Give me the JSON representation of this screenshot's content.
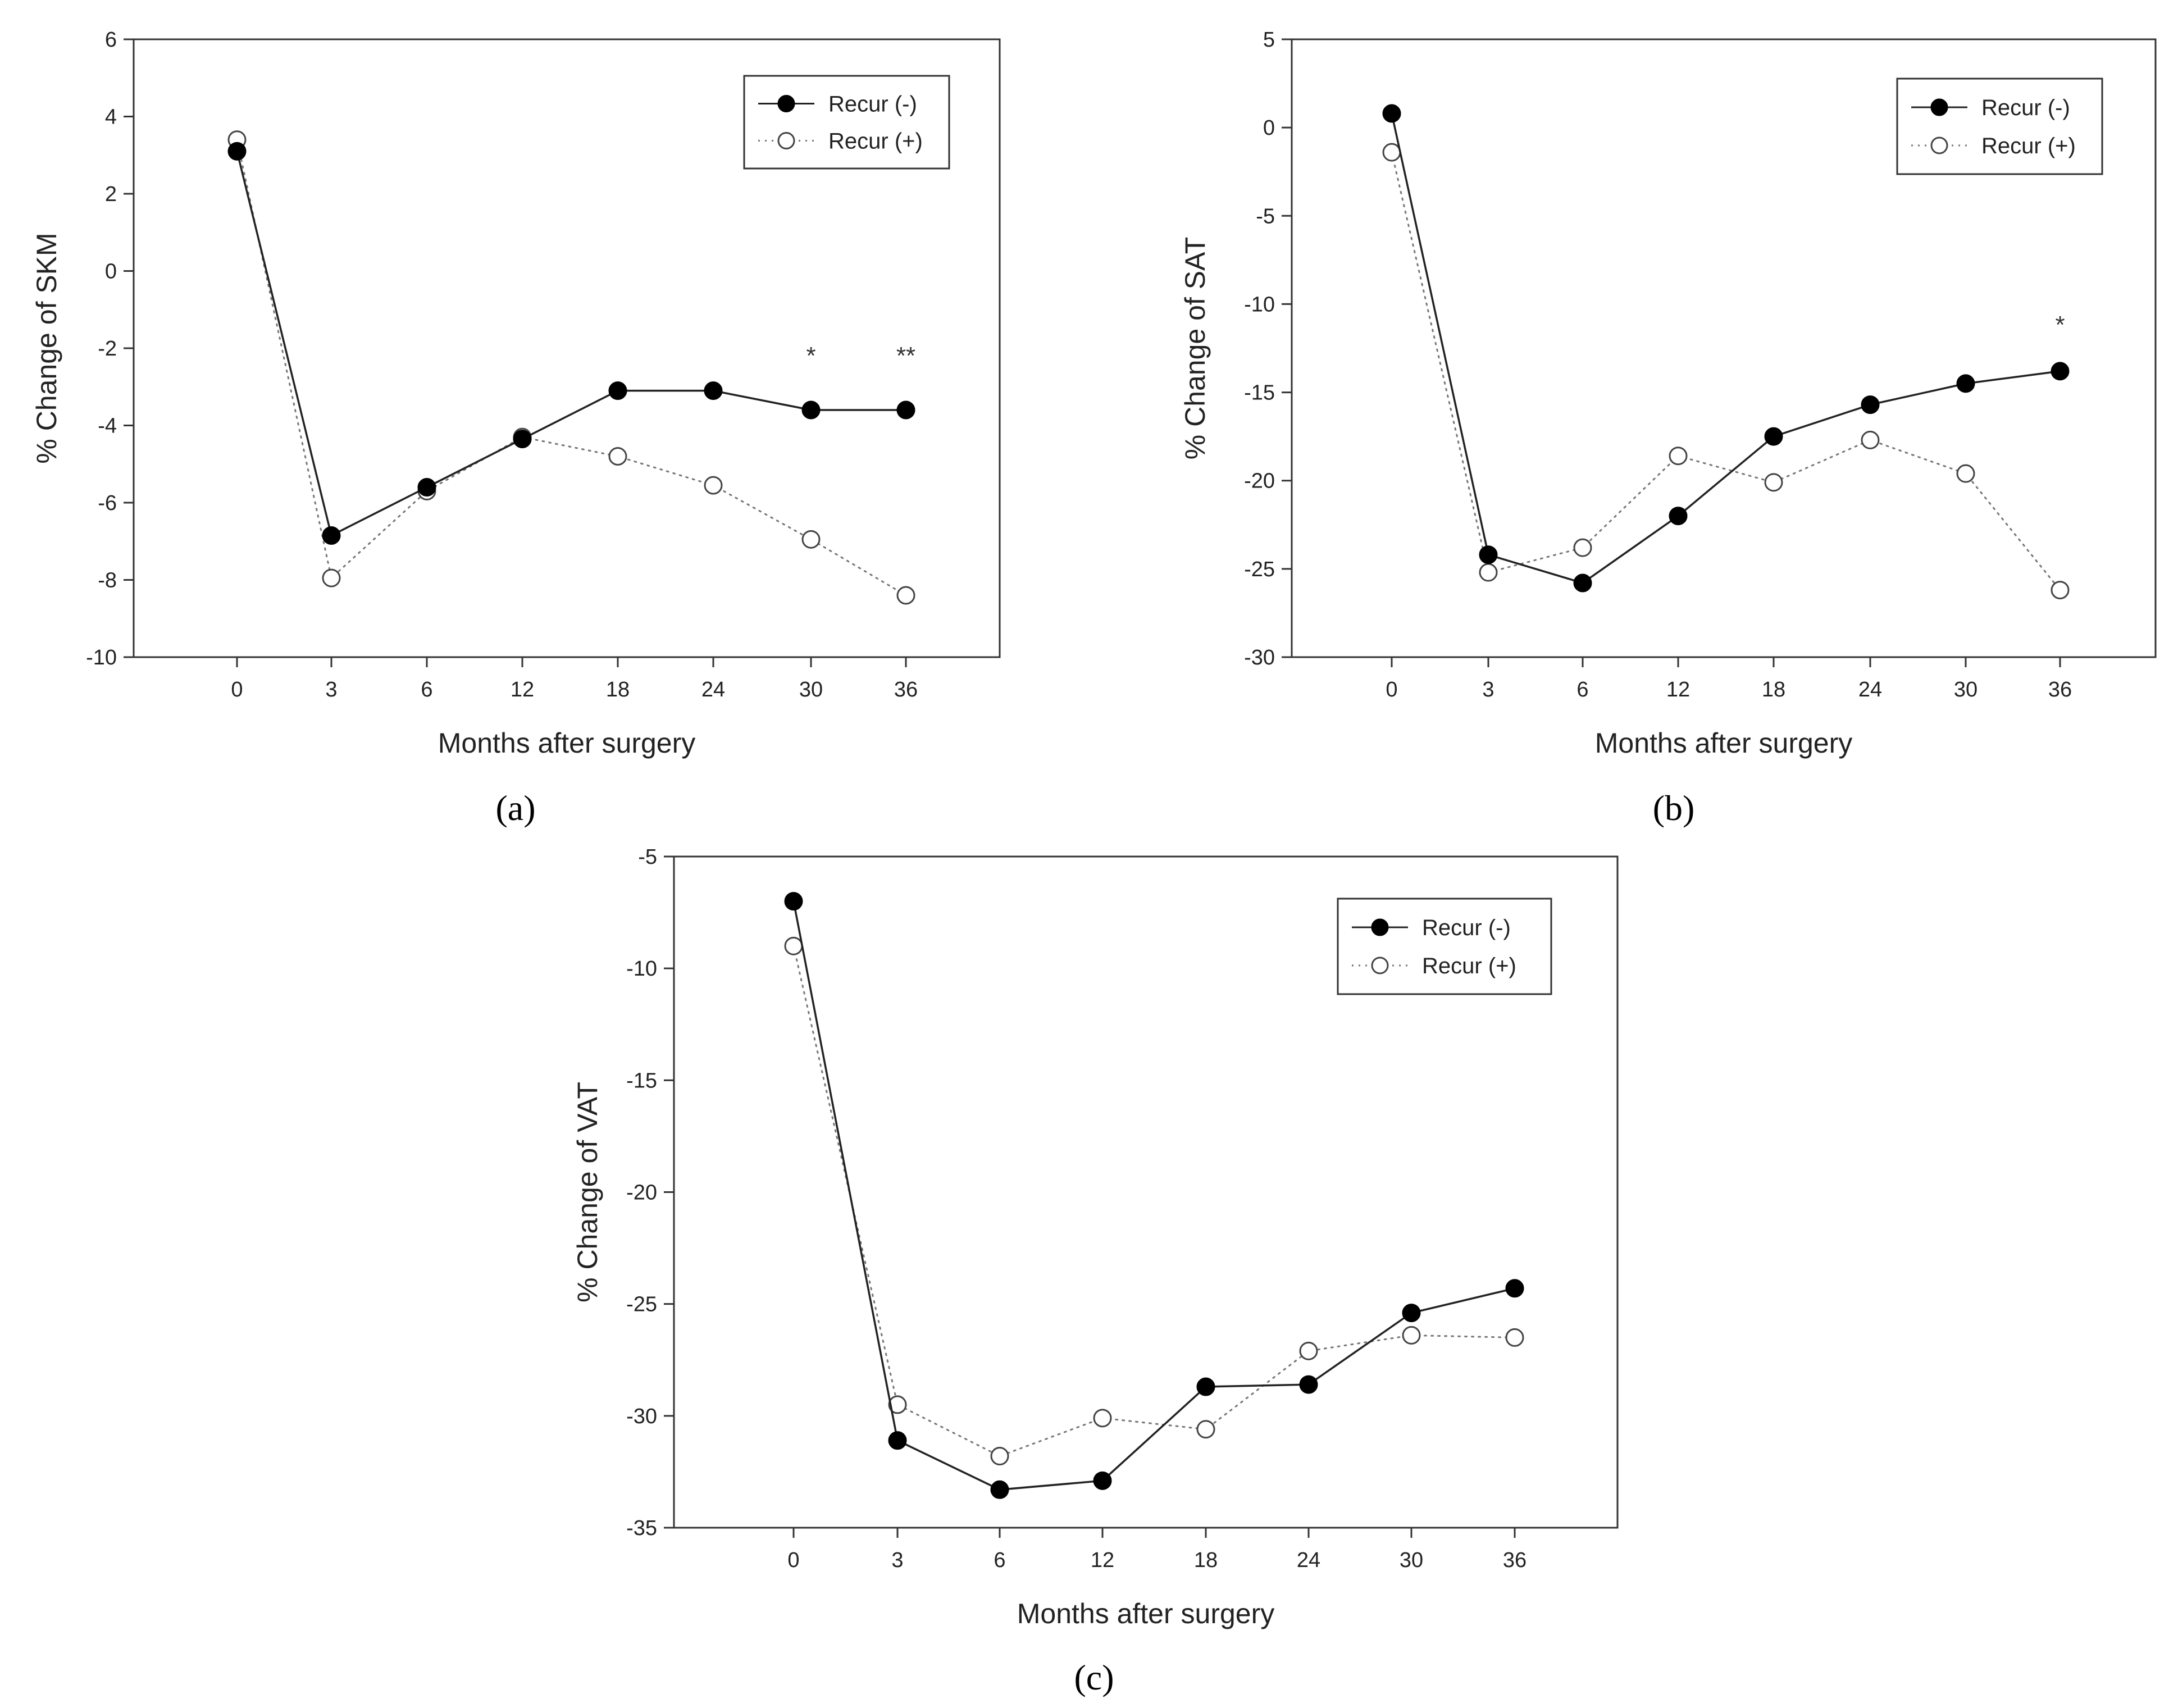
{
  "figure": {
    "panels": [
      "(a)",
      "(b)",
      "(c)"
    ],
    "legend": [
      "Recur (-)",
      "Recur (+)"
    ]
  },
  "chart_data": [
    {
      "type": "line",
      "panel": "(a)",
      "title": "",
      "xlabel": "Months after surgery",
      "ylabel": "% Change of SKM",
      "categories": [
        "0",
        "3",
        "6",
        "12",
        "18",
        "24",
        "30",
        "36"
      ],
      "yticks": [
        "6",
        "4",
        "2",
        "0",
        "-2",
        "-4",
        "-6",
        "-8",
        "-10"
      ],
      "ylim": [
        -10,
        6
      ],
      "legend_position": "top-right",
      "series": [
        {
          "name": "Recur (-)",
          "style": "solid",
          "marker": "filled",
          "values": [
            3.1,
            -6.85,
            -5.6,
            -4.35,
            -3.1,
            -3.1,
            -3.6,
            -3.6
          ]
        },
        {
          "name": "Recur (+)",
          "style": "dotted",
          "marker": "open",
          "values": [
            3.4,
            -7.95,
            -5.7,
            -4.3,
            -4.8,
            -5.55,
            -6.95,
            -8.4
          ]
        }
      ],
      "annotations": [
        {
          "category": "30",
          "text": "*",
          "value": -2.2
        },
        {
          "category": "36",
          "text": "**",
          "value": -2.2
        }
      ]
    },
    {
      "type": "line",
      "panel": "(b)",
      "title": "",
      "xlabel": "Months after surgery",
      "ylabel": "% Change of SAT",
      "categories": [
        "0",
        "3",
        "6",
        "12",
        "18",
        "24",
        "30",
        "36"
      ],
      "yticks": [
        "5",
        "0",
        "-5",
        "-10",
        "-15",
        "-20",
        "-25",
        "-30"
      ],
      "ylim": [
        -30,
        5
      ],
      "legend_position": "top-right",
      "series": [
        {
          "name": "Recur (-)",
          "style": "solid",
          "marker": "filled",
          "values": [
            0.8,
            -24.2,
            -25.8,
            -22.0,
            -17.5,
            -15.7,
            -14.5,
            -13.8
          ]
        },
        {
          "name": "Recur (+)",
          "style": "dotted",
          "marker": "open",
          "values": [
            -1.4,
            -25.2,
            -23.8,
            -18.6,
            -20.1,
            -17.7,
            -19.6,
            -26.2
          ]
        }
      ],
      "annotations": [
        {
          "category": "36",
          "text": "*",
          "value": -11.2
        }
      ]
    },
    {
      "type": "line",
      "panel": "(c)",
      "title": "",
      "xlabel": "Months after surgery",
      "ylabel": "% Change of VAT",
      "categories": [
        "0",
        "3",
        "6",
        "12",
        "18",
        "24",
        "30",
        "36"
      ],
      "yticks": [
        "-5",
        "-10",
        "-15",
        "-20",
        "-25",
        "-30",
        "-35"
      ],
      "ylim": [
        -35,
        -5
      ],
      "legend_position": "top-right",
      "series": [
        {
          "name": "Recur (-)",
          "style": "solid",
          "marker": "filled",
          "values": [
            -7.0,
            -31.1,
            -33.3,
            -32.9,
            -28.7,
            -28.6,
            -25.4,
            -24.3
          ]
        },
        {
          "name": "Recur (+)",
          "style": "dotted",
          "marker": "open",
          "values": [
            -9.0,
            -29.5,
            -31.8,
            -30.1,
            -30.6,
            -27.1,
            -26.4,
            -26.5
          ]
        }
      ],
      "annotations": []
    }
  ]
}
